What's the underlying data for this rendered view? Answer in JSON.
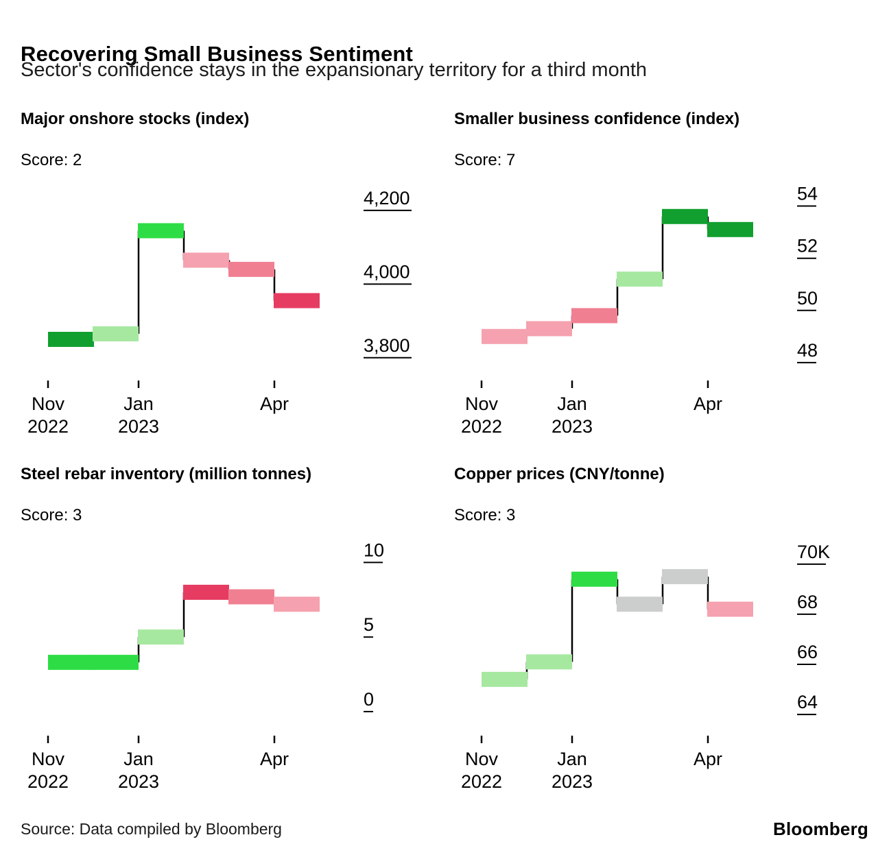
{
  "header": {
    "title": "Recovering Small Business Sentiment",
    "subtitle": "Sector's confidence stays in the expansionary territory for a third month"
  },
  "footer": {
    "source": "Source: Data compiled by Bloomberg",
    "brand": "Bloomberg"
  },
  "palette": {
    "dark_green": "#119f2f",
    "bright_green": "#2edd45",
    "light_green": "#a7e8a1",
    "light_pink": "#f5a1af",
    "pink": "#f07f92",
    "red": "#e63c62",
    "gray": "#cbcecd",
    "connector": "#000000"
  },
  "chart_data": [
    {
      "type": "bar",
      "title": "Major onshore stocks (index)",
      "score_label": "Score: 2",
      "x": [
        "Nov 2022",
        "Dec 2022",
        "Jan 2023",
        "Feb 2023",
        "Mar 2023",
        "Apr 2023"
      ],
      "values": [
        3850,
        3865,
        4145,
        4065,
        4040,
        3955
      ],
      "colors": [
        "dark_green",
        "light_green",
        "bright_green",
        "light_pink",
        "pink",
        "red"
      ],
      "ylim": [
        3755,
        4265
      ],
      "yticks": [
        {
          "v": 4200,
          "label": "4,200"
        },
        {
          "v": 4000,
          "label": "4,000"
        },
        {
          "v": 3800,
          "label": "3,800"
        }
      ],
      "xticks": [
        {
          "i": 0,
          "lines": [
            "Nov",
            "2022"
          ]
        },
        {
          "i": 2,
          "lines": [
            "Jan",
            "2023"
          ]
        },
        {
          "i": 5,
          "lines": [
            "Apr"
          ]
        }
      ]
    },
    {
      "type": "bar",
      "title": "Smaller business confidence (index)",
      "score_label": "Score: 7",
      "x": [
        "Nov 2022",
        "Dec 2022",
        "Jan 2023",
        "Feb 2023",
        "Mar 2023",
        "Apr 2023"
      ],
      "values": [
        49.0,
        49.3,
        49.8,
        51.2,
        53.6,
        53.1
      ],
      "colors": [
        "light_pink",
        "light_pink",
        "pink",
        "light_green",
        "dark_green",
        "dark_green"
      ],
      "ylim": [
        47.55,
        54.75
      ],
      "yticks": [
        {
          "v": 54,
          "label": "54"
        },
        {
          "v": 52,
          "label": "52"
        },
        {
          "v": 50,
          "label": "50"
        },
        {
          "v": 48,
          "label": "48"
        }
      ],
      "xticks": [
        {
          "i": 0,
          "lines": [
            "Nov",
            "2022"
          ]
        },
        {
          "i": 2,
          "lines": [
            "Jan",
            "2023"
          ]
        },
        {
          "i": 5,
          "lines": [
            "Apr"
          ]
        }
      ]
    },
    {
      "type": "bar",
      "title": "Steel rebar inventory (million tonnes)",
      "score_label": "Score: 3",
      "x": [
        "Nov 2022",
        "Dec 2022",
        "Jan 2023",
        "Feb 2023",
        "Mar 2023",
        "Apr 2023"
      ],
      "values": [
        3.3,
        3.3,
        5.0,
        8.0,
        7.7,
        7.2
      ],
      "colors": [
        "bright_green",
        "bright_green",
        "light_green",
        "red",
        "pink",
        "light_pink"
      ],
      "ylim": [
        -1.2,
        11.4
      ],
      "yticks": [
        {
          "v": 10,
          "label": "10"
        },
        {
          "v": 5,
          "label": "5"
        },
        {
          "v": 0,
          "label": "0"
        }
      ],
      "xticks": [
        {
          "i": 0,
          "lines": [
            "Nov",
            "2022"
          ]
        },
        {
          "i": 2,
          "lines": [
            "Jan",
            "2023"
          ]
        },
        {
          "i": 5,
          "lines": [
            "Apr"
          ]
        }
      ]
    },
    {
      "type": "bar",
      "title": "Copper prices (CNY/tonne)",
      "score_label": "Score: 3",
      "x": [
        "Nov 2022",
        "Dec 2022",
        "Jan 2023",
        "Feb 2023",
        "Mar 2023",
        "Apr 2023"
      ],
      "values": [
        65.4,
        66.1,
        69.4,
        68.4,
        69.5,
        68.2
      ],
      "colors": [
        "light_green",
        "light_green",
        "bright_green",
        "gray",
        "gray",
        "light_pink"
      ],
      "ylim": [
        63.4,
        70.9
      ],
      "yticks": [
        {
          "v": 70,
          "label": "70K"
        },
        {
          "v": 68,
          "label": "68"
        },
        {
          "v": 66,
          "label": "66"
        },
        {
          "v": 64,
          "label": "64"
        }
      ],
      "xticks": [
        {
          "i": 0,
          "lines": [
            "Nov",
            "2022"
          ]
        },
        {
          "i": 2,
          "lines": [
            "Jan",
            "2023"
          ]
        },
        {
          "i": 5,
          "lines": [
            "Apr"
          ]
        }
      ]
    }
  ]
}
